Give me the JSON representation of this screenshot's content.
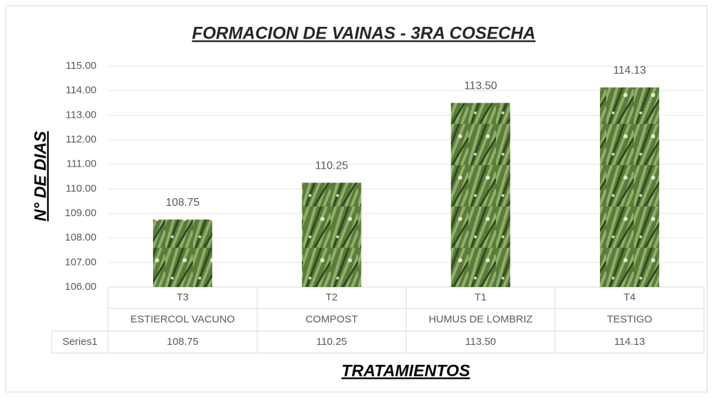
{
  "chart_data": {
    "type": "bar",
    "title": "FORMACION DE VAINAS - 3RA COSECHA",
    "y_label": "N° DE DIAS",
    "x_label": "TRATAMIENTOS",
    "categories": [
      "T3",
      "T2",
      "T1",
      "T4"
    ],
    "category_descriptions": [
      "ESTIERCOL VACUNO",
      "COMPOST",
      "HUMUS DE LOMBRIZ",
      "TESTIGO"
    ],
    "series": [
      {
        "name": "Series1",
        "color": "#5b7c3a",
        "values": [
          108.75,
          110.25,
          113.5,
          114.13
        ],
        "value_labels": [
          "108.75",
          "110.25",
          "113.50",
          "114.13"
        ]
      }
    ],
    "ylim": [
      106,
      115
    ],
    "yticks": [
      {
        "value": 106,
        "label": "106.00"
      },
      {
        "value": 107,
        "label": "107.00"
      },
      {
        "value": 108,
        "label": "108.00"
      },
      {
        "value": 109,
        "label": "109.00"
      },
      {
        "value": 110,
        "label": "110.00"
      },
      {
        "value": 111,
        "label": "111.00"
      },
      {
        "value": 112,
        "label": "112.00"
      },
      {
        "value": 113,
        "label": "113.00"
      },
      {
        "value": 114,
        "label": "114.00"
      },
      {
        "value": 115,
        "label": "115.00"
      }
    ],
    "grid": true
  }
}
